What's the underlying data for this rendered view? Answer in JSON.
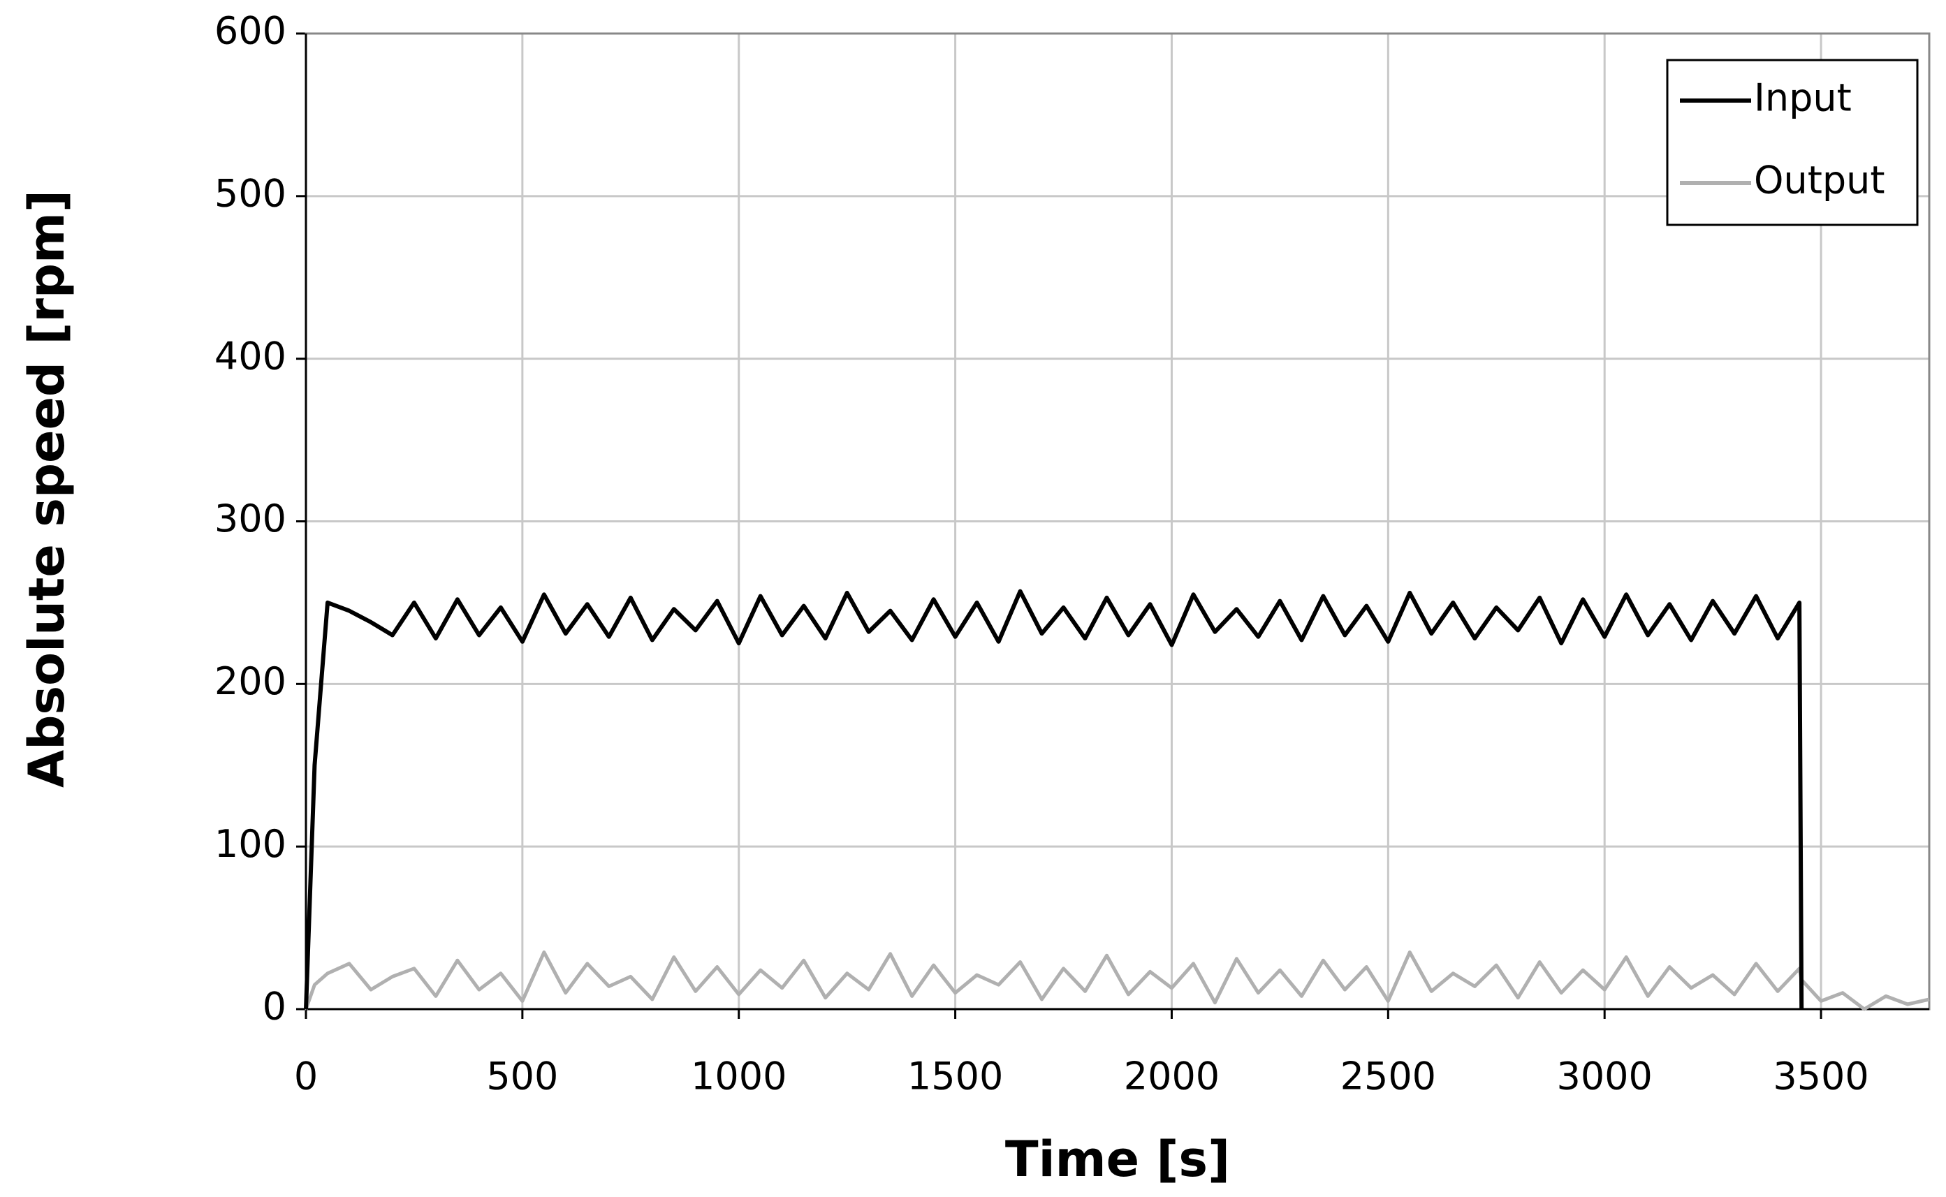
{
  "chart_data": {
    "type": "line",
    "xlabel": "Time [s]",
    "ylabel": "Absolute speed [rpm]",
    "x": [
      0,
      20,
      50,
      100,
      150,
      200,
      250,
      300,
      350,
      400,
      450,
      500,
      550,
      600,
      650,
      700,
      750,
      800,
      850,
      900,
      950,
      1000,
      1050,
      1100,
      1150,
      1200,
      1250,
      1300,
      1350,
      1400,
      1450,
      1500,
      1550,
      1600,
      1650,
      1700,
      1750,
      1800,
      1850,
      1900,
      1950,
      2000,
      2050,
      2100,
      2150,
      2200,
      2250,
      2300,
      2350,
      2400,
      2450,
      2500,
      2550,
      2600,
      2650,
      2700,
      2750,
      2800,
      2850,
      2900,
      2950,
      3000,
      3050,
      3100,
      3150,
      3200,
      3250,
      3300,
      3350,
      3400,
      3450,
      3455,
      3500,
      3550,
      3600,
      3650,
      3700,
      3750
    ],
    "series": [
      {
        "name": "Input",
        "color": "#000000",
        "values": [
          0,
          150,
          250,
          245,
          238,
          230,
          250,
          228,
          252,
          230,
          247,
          226,
          255,
          231,
          249,
          229,
          253,
          227,
          246,
          233,
          251,
          225,
          254,
          230,
          248,
          228,
          256,
          232,
          245,
          227,
          252,
          229,
          250,
          226,
          257,
          231,
          247,
          228,
          253,
          230,
          249,
          224,
          255,
          232,
          246,
          229,
          251,
          227,
          254,
          230,
          248,
          226,
          256,
          231,
          250,
          228,
          247,
          233,
          253,
          225,
          252,
          229,
          255,
          230,
          249,
          227,
          251,
          231,
          254,
          228,
          250,
          0,
          null,
          null,
          null,
          null,
          null,
          null
        ]
      },
      {
        "name": "Output",
        "color": "#b0b0b0",
        "values": [
          0,
          15,
          22,
          28,
          12,
          20,
          25,
          8,
          30,
          12,
          22,
          5,
          35,
          10,
          28,
          14,
          20,
          6,
          32,
          11,
          26,
          9,
          24,
          13,
          30,
          7,
          22,
          12,
          34,
          8,
          27,
          10,
          21,
          15,
          29,
          6,
          25,
          11,
          33,
          9,
          23,
          13,
          28,
          4,
          31,
          10,
          24,
          8,
          30,
          12,
          26,
          5,
          35,
          11,
          22,
          14,
          27,
          7,
          29,
          10,
          24,
          12,
          32,
          8,
          26,
          13,
          21,
          9,
          28,
          11,
          25,
          18,
          5,
          10,
          0,
          8,
          3,
          6
        ]
      }
    ],
    "xlim": [
      0,
      3750
    ],
    "xticks": [
      0,
      500,
      1000,
      1500,
      2000,
      2500,
      3000,
      3500
    ],
    "ylim": [
      0,
      600
    ],
    "yticks": [
      0,
      100,
      200,
      300,
      400,
      500,
      600
    ],
    "grid": true,
    "legend": "upper right"
  }
}
